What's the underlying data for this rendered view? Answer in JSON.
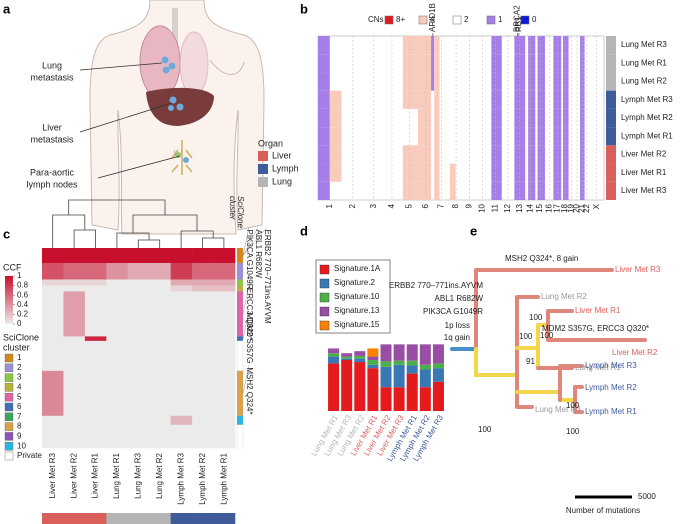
{
  "panel_a": {
    "tag": "a",
    "labels": [
      [
        "Lung",
        "metastasis"
      ],
      [
        "Liver",
        "metastasis"
      ],
      [
        "Para-aortic",
        "lymph nodes"
      ]
    ],
    "legend_title": "Organ",
    "organs": [
      {
        "name": "Liver",
        "color": "#d9605a"
      },
      {
        "name": "Lymph",
        "color": "#3e5c9a"
      },
      {
        "name": "Lung",
        "color": "#b5b5b5"
      }
    ]
  },
  "panel_b": {
    "tag": "b",
    "legend_title": "CNs",
    "states": [
      {
        "name": "8+",
        "color": "#e31a1c"
      },
      {
        "name": "4",
        "color": "#f9cbbd"
      },
      {
        "name": "2",
        "color": "#ffffff"
      },
      {
        "name": "1",
        "color": "#a77ee8"
      },
      {
        "name": "0",
        "color": "#0b1bd6"
      }
    ],
    "genes": [
      {
        "name": "ARID1B",
        "pos": 1219
      },
      {
        "name": "BRCA2",
        "pos": 2116
      },
      {
        "name": "RB1",
        "pos": 2132
      }
    ],
    "rows": [
      {
        "name": "Lung Met R3",
        "organ": "Lung"
      },
      {
        "name": "Lung Met R1",
        "organ": "Lung"
      },
      {
        "name": "Lung Met R2",
        "organ": "Lung"
      },
      {
        "name": "Lymph Met R3",
        "organ": "Lymph"
      },
      {
        "name": "Lymph Met R2",
        "organ": "Lymph"
      },
      {
        "name": "Lymph Met R1",
        "organ": "Lymph"
      },
      {
        "name": "Liver Met R2",
        "organ": "Liver"
      },
      {
        "name": "Liver Met R1",
        "organ": "Liver"
      },
      {
        "name": "Liver Met R3",
        "organ": "Liver"
      }
    ],
    "xlim": [
      0,
      3035
    ],
    "xticks": [
      {
        "value": 124,
        "label": "1"
      },
      {
        "value": 370,
        "label": "2"
      },
      {
        "value": 591,
        "label": "3"
      },
      {
        "value": 785,
        "label": "4"
      },
      {
        "value": 971,
        "label": "5"
      },
      {
        "value": 1147,
        "label": "6"
      },
      {
        "value": 1312,
        "label": "7"
      },
      {
        "value": 1465,
        "label": "8"
      },
      {
        "value": 1608,
        "label": "9"
      },
      {
        "value": 1747,
        "label": "10"
      },
      {
        "value": 1882,
        "label": "11"
      },
      {
        "value": 2017,
        "label": "12"
      },
      {
        "value": 2141,
        "label": "13"
      },
      {
        "value": 2252,
        "label": "14"
      },
      {
        "value": 2357,
        "label": "15"
      },
      {
        "value": 2453,
        "label": "16"
      },
      {
        "value": 2539,
        "label": "17"
      },
      {
        "value": 2620,
        "label": "18"
      },
      {
        "value": 2688,
        "label": "19"
      },
      {
        "value": 2749,
        "label": "20"
      },
      {
        "value": 2805,
        "label": "21"
      },
      {
        "value": 2854,
        "label": "22"
      },
      {
        "value": 2957,
        "label": "X"
      }
    ],
    "segments": [
      {
        "cn": "1",
        "start": 0,
        "end": 125,
        "rows": [
          "Lung Met R3",
          "Lung Met R1",
          "Lung Met R2",
          "Lymph Met R3",
          "Lymph Met R2",
          "Lymph Met R1",
          "Liver Met R2",
          "Liver Met R1",
          "Liver Met R3"
        ]
      },
      {
        "cn": "4",
        "start": 125,
        "end": 249,
        "rows": [
          "Lymph Met R3",
          "Lymph Met R2",
          "Lymph Met R1",
          "Liver Met R2",
          "Liver Met R1"
        ]
      },
      {
        "cn": "4",
        "start": 900,
        "end": 1062,
        "rows": [
          "Lung Met R3",
          "Lung Met R1",
          "Lung Met R2",
          "Lymph Met R3",
          "Liver Met R2",
          "Liver Met R1",
          "Liver Met R3"
        ]
      },
      {
        "cn": "4",
        "start": 1062,
        "end": 1200,
        "rows": [
          "Lung Met R3",
          "Lung Met R1",
          "Lung Met R2",
          "Lymph Met R3",
          "Lymph Met R2",
          "Lymph Met R1",
          "Liver Met R2",
          "Liver Met R1",
          "Liver Met R3"
        ]
      },
      {
        "cn": "1",
        "start": 1200,
        "end": 1233,
        "rows": [
          "Lung Met R3",
          "Lung Met R1",
          "Lung Met R2"
        ]
      },
      {
        "cn": "4",
        "start": 1233,
        "end": 1290,
        "rows": [
          "Lung Met R3",
          "Lung Met R1",
          "Lung Met R2",
          "Lymph Met R3",
          "Lymph Met R2",
          "Lymph Met R1",
          "Liver Met R2",
          "Liver Met R1",
          "Liver Met R3"
        ]
      },
      {
        "cn": "4",
        "start": 1400,
        "end": 1460,
        "rows": [
          "Liver Met R1",
          "Liver Met R3"
        ]
      },
      {
        "cn": "1",
        "start": 1840,
        "end": 1950,
        "rows": [
          "Lung Met R3",
          "Lung Met R1",
          "Lung Met R2",
          "Lymph Met R3",
          "Lymph Met R2",
          "Lymph Met R1",
          "Liver Met R2",
          "Liver Met R1",
          "Liver Met R3"
        ]
      },
      {
        "cn": "1",
        "start": 2084,
        "end": 2199,
        "rows": [
          "Lung Met R3",
          "Lung Met R1",
          "Lung Met R2",
          "Lymph Met R3",
          "Lymph Met R2",
          "Lymph Met R1",
          "Liver Met R2",
          "Liver Met R1",
          "Liver Met R3"
        ]
      },
      {
        "cn": "1",
        "start": 2230,
        "end": 2306,
        "rows": [
          "Lung Met R3",
          "Lung Met R1",
          "Lung Met R2",
          "Lymph Met R3",
          "Lymph Met R2",
          "Lymph Met R1",
          "Liver Met R2",
          "Liver Met R1",
          "Liver Met R3"
        ]
      },
      {
        "cn": "1",
        "start": 2330,
        "end": 2408,
        "rows": [
          "Lung Met R3",
          "Lung Met R1",
          "Lung Met R2",
          "Lymph Met R3",
          "Lymph Met R2",
          "Lymph Met R1",
          "Liver Met R2",
          "Liver Met R1",
          "Liver Met R3"
        ]
      },
      {
        "cn": "1",
        "start": 2498,
        "end": 2581,
        "rows": [
          "Lung Met R3",
          "Lung Met R1",
          "Lung Met R2",
          "Lymph Met R3",
          "Lymph Met R2",
          "Lymph Met R1",
          "Liver Met R2",
          "Liver Met R1",
          "Liver Met R3"
        ]
      },
      {
        "cn": "1",
        "start": 2600,
        "end": 2659,
        "rows": [
          "Lung Met R3",
          "Lung Met R1",
          "Lung Met R2",
          "Lymph Met R3",
          "Lymph Met R2",
          "Lymph Met R1",
          "Liver Met R2",
          "Liver Met R1",
          "Liver Met R3"
        ]
      },
      {
        "cn": "1",
        "start": 2781,
        "end": 2829,
        "rows": [
          "Lung Met R3",
          "Lung Met R1",
          "Lung Met R2",
          "Lymph Met R3",
          "Lymph Met R2",
          "Lymph Met R1",
          "Liver Met R2",
          "Liver Met R1",
          "Liver Met R3"
        ]
      }
    ]
  },
  "panel_c": {
    "tag": "c",
    "cluster_header": [
      "SciClone",
      "cluster"
    ],
    "samples": [
      {
        "name": "Liver Met R3",
        "organ": "Liver"
      },
      {
        "name": "Liver Met R2",
        "organ": "Liver"
      },
      {
        "name": "Liver Met R1",
        "organ": "Liver"
      },
      {
        "name": "Lung Met R1",
        "organ": "Lung"
      },
      {
        "name": "Lung Met R3",
        "organ": "Lung"
      },
      {
        "name": "Lung Met R2",
        "organ": "Lung"
      },
      {
        "name": "Lymph Met R3",
        "organ": "Lymph"
      },
      {
        "name": "Lymph Met R2",
        "organ": "Lymph"
      },
      {
        "name": "Lymph Met R1",
        "organ": "Lymph"
      }
    ],
    "ccf_title": "CCF",
    "ccf_ticks": [
      1,
      0.8,
      0.6,
      0.4,
      0.2,
      0
    ],
    "ccf_colors": [
      "#ebebeb",
      "#c8102e"
    ],
    "cluster_title": [
      "SciClone",
      "cluster"
    ],
    "clusters": [
      {
        "name": "1",
        "color": "#d4861a"
      },
      {
        "name": "2",
        "color": "#9b8fd6"
      },
      {
        "name": "3",
        "color": "#8dc63f"
      },
      {
        "name": "4",
        "color": "#b8b23a"
      },
      {
        "name": "5",
        "color": "#e063a8"
      },
      {
        "name": "6",
        "color": "#3d6fb6"
      },
      {
        "name": "7",
        "color": "#3aa55c"
      },
      {
        "name": "8",
        "color": "#d9a24a"
      },
      {
        "name": "9",
        "color": "#8a55b5"
      },
      {
        "name": "10",
        "color": "#29b6e6"
      },
      {
        "name": "Private",
        "color": "#ffffff"
      }
    ],
    "blocks": [
      {
        "cluster": "1",
        "size": 20,
        "ccf": [
          1,
          1,
          1,
          1,
          1,
          1,
          1,
          1,
          1
        ]
      },
      {
        "cluster": "2",
        "size": 22,
        "ccf": [
          0.7,
          0.6,
          0.6,
          0.4,
          0.3,
          0.3,
          0.8,
          0.6,
          0.6
        ]
      },
      {
        "cluster": "3",
        "size": 8,
        "ccf": [
          0.1,
          0.1,
          0.1,
          0,
          0,
          0,
          0.3,
          0.3,
          0.3
        ]
      },
      {
        "cluster": "4",
        "size": 8,
        "ccf": [
          0,
          0,
          0,
          0,
          0,
          0,
          0.1,
          0.2,
          0.2
        ]
      },
      {
        "cluster": "5",
        "size": 60,
        "ccf": [
          0,
          0.35,
          0,
          0,
          0,
          0,
          0,
          0,
          0
        ]
      },
      {
        "cluster": "6",
        "size": 6,
        "ccf": [
          0,
          0,
          0.9,
          0,
          0,
          0,
          0,
          0,
          0
        ]
      },
      {
        "cluster": "Private",
        "size": 40,
        "ccf": [
          0,
          0,
          0,
          0,
          0,
          0,
          0,
          0,
          0
        ]
      },
      {
        "cluster": "8",
        "size": 60,
        "ccf": [
          0.45,
          0,
          0,
          0,
          0,
          0,
          0,
          0,
          0
        ]
      },
      {
        "cluster": "10",
        "size": 12,
        "ccf": [
          0,
          0,
          0,
          0,
          0,
          0,
          0.25,
          0,
          0
        ]
      },
      {
        "cluster": "Private",
        "size": 31,
        "ccf": [
          0,
          0,
          0,
          0,
          0,
          0,
          0,
          0,
          0
        ]
      }
    ],
    "mutations": [
      {
        "name": "PIK3CA G1049R",
        "cluster": "1"
      },
      {
        "name": "ABL1 R682W",
        "cluster": "1"
      },
      {
        "name": "ERBB2 770–771ins.AYVM",
        "cluster": "1"
      },
      {
        "name": "ERCC3 Q320*",
        "cluster": "5"
      },
      {
        "name": "MDM2 S357G",
        "cluster": "6"
      },
      {
        "name": "MSH2 Q324*",
        "cluster": "8"
      }
    ]
  },
  "chart_data": {
    "type": "bar",
    "tag": "d",
    "stacked": true,
    "categories": [
      "Lung Met R1",
      "Lung Met R3",
      "Lung Met R2",
      "Liver Met R1",
      "Liver Met R2",
      "Liver Met R3",
      "Lymph Met R1",
      "Lymph Met R2",
      "Lymph Met R3"
    ],
    "category_organs": [
      "Lung",
      "Lung",
      "Lung",
      "Liver",
      "Liver",
      "Liver",
      "Lymph",
      "Lymph",
      "Lymph"
    ],
    "series": [
      {
        "name": "Signature.1A",
        "color": "#e41a1c",
        "values": [
          0.7,
          0.75,
          0.72,
          0.63,
          0.35,
          0.35,
          0.55,
          0.35,
          0.43
        ]
      },
      {
        "name": "Signature.2",
        "color": "#3a78b5",
        "values": [
          0.1,
          0.02,
          0.05,
          0.05,
          0.3,
          0.33,
          0.12,
          0.26,
          0.2
        ]
      },
      {
        "name": "Signature.10",
        "color": "#4daf4a",
        "values": [
          0.05,
          0.03,
          0.04,
          0.07,
          0.08,
          0.06,
          0.07,
          0.07,
          0.07
        ]
      },
      {
        "name": "Signature.13",
        "color": "#984ea3",
        "values": [
          0.07,
          0.05,
          0.07,
          0.05,
          0.25,
          0.24,
          0.24,
          0.3,
          0.28
        ]
      },
      {
        "name": "Signature.15",
        "color": "#ff7f00",
        "values": [
          0,
          0,
          0,
          0.12,
          0,
          0,
          0,
          0,
          0
        ]
      }
    ],
    "ylim": [
      0,
      1
    ]
  },
  "panel_e": {
    "tag": "e",
    "leaves": [
      "Liver Met R3",
      "Lung Met R2",
      "Liver Met R1",
      "Liver Met R2",
      "Lung Met R1",
      "Lymph Met R3",
      "Lymph Met R2",
      "Lymph Met R1",
      "Lung Met R3"
    ],
    "bootstrap": [
      100,
      100,
      91,
      100,
      100,
      100,
      100
    ],
    "annotations": [
      "MSH2 Q324*, 8 gain",
      "ERBB2 770–771ins.AYVM",
      "ABL1 R682W",
      "PIK3CA G1049R",
      "1p loss",
      "1q gain",
      "MDM2 S357G, ERCC3 Q320*"
    ],
    "scale": 5000,
    "scale_title": "Number of mutations"
  }
}
